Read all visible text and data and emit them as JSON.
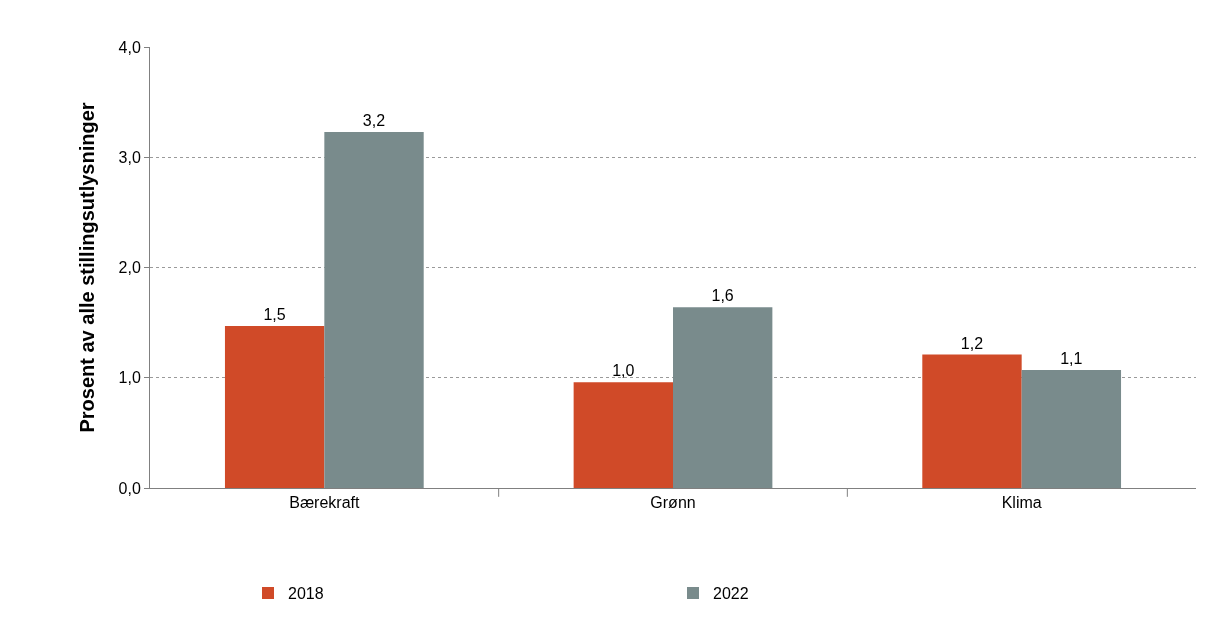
{
  "chart_data": {
    "type": "bar",
    "ylabel": "Prosent av alle stillingsutlysninger",
    "categories": [
      "Bærekraft",
      "Grønn",
      "Klima"
    ],
    "series": [
      {
        "name": "2018",
        "color": "#d04a28",
        "values": [
          1.47,
          0.96,
          1.21
        ],
        "value_labels": [
          "1,5",
          "1,0",
          "1,2"
        ]
      },
      {
        "name": "2022",
        "color": "#798b8c",
        "values": [
          3.23,
          1.64,
          1.07
        ],
        "value_labels": [
          "3,2",
          "1,6",
          "1,1"
        ]
      }
    ],
    "ylim": [
      0,
      4
    ],
    "yticks": [
      {
        "value": 0,
        "label": "0,0"
      },
      {
        "value": 1,
        "label": "1,0"
      },
      {
        "value": 2,
        "label": "2,0"
      },
      {
        "value": 3,
        "label": "3,0"
      },
      {
        "value": 4,
        "label": "4,0"
      }
    ],
    "grid": "y",
    "legend": "bottom"
  }
}
